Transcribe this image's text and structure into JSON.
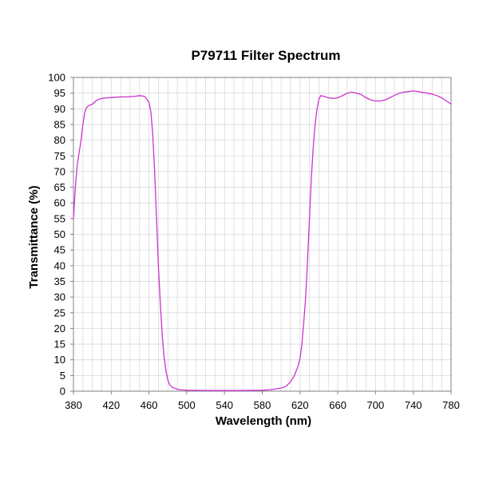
{
  "chart_data": {
    "type": "line",
    "title": "P79711 Filter Spectrum",
    "xlabel": "Wavelength (nm)",
    "ylabel": "Transmittance (%)",
    "xlim": [
      380,
      780
    ],
    "ylim": [
      0,
      100
    ],
    "x_ticks": [
      380,
      420,
      460,
      500,
      540,
      580,
      620,
      660,
      700,
      740,
      780
    ],
    "y_ticks": [
      0,
      5,
      10,
      15,
      20,
      25,
      30,
      35,
      40,
      45,
      50,
      55,
      60,
      65,
      70,
      75,
      80,
      85,
      90,
      95,
      100
    ],
    "grid": true,
    "legend": "none",
    "line_color": "#cc33cc",
    "series": [
      {
        "points": [
          [
            380,
            55
          ],
          [
            382,
            65
          ],
          [
            384,
            72
          ],
          [
            386,
            76
          ],
          [
            388,
            80
          ],
          [
            390,
            85
          ],
          [
            392,
            89
          ],
          [
            394,
            90.5
          ],
          [
            396,
            91
          ],
          [
            400,
            91.5
          ],
          [
            405,
            92.8
          ],
          [
            410,
            93.3
          ],
          [
            415,
            93.5
          ],
          [
            420,
            93.6
          ],
          [
            425,
            93.7
          ],
          [
            430,
            93.8
          ],
          [
            435,
            93.8
          ],
          [
            440,
            93.9
          ],
          [
            445,
            94
          ],
          [
            450,
            94.2
          ],
          [
            455,
            94
          ],
          [
            458,
            93
          ],
          [
            460,
            92
          ],
          [
            462,
            89
          ],
          [
            464,
            82
          ],
          [
            466,
            70
          ],
          [
            468,
            55
          ],
          [
            470,
            40
          ],
          [
            472,
            28
          ],
          [
            474,
            18
          ],
          [
            476,
            11
          ],
          [
            478,
            6.5
          ],
          [
            480,
            3.5
          ],
          [
            482,
            2
          ],
          [
            485,
            1.2
          ],
          [
            490,
            0.6
          ],
          [
            495,
            0.4
          ],
          [
            500,
            0.3
          ],
          [
            520,
            0.2
          ],
          [
            540,
            0.2
          ],
          [
            560,
            0.2
          ],
          [
            580,
            0.3
          ],
          [
            590,
            0.5
          ],
          [
            600,
            1
          ],
          [
            605,
            1.5
          ],
          [
            610,
            3
          ],
          [
            614,
            5
          ],
          [
            618,
            8
          ],
          [
            620,
            10.5
          ],
          [
            622,
            15
          ],
          [
            624,
            22
          ],
          [
            626,
            30
          ],
          [
            628,
            42
          ],
          [
            630,
            55
          ],
          [
            632,
            68
          ],
          [
            634,
            78
          ],
          [
            636,
            85
          ],
          [
            638,
            90
          ],
          [
            640,
            93
          ],
          [
            642,
            94.2
          ],
          [
            645,
            94
          ],
          [
            650,
            93.5
          ],
          [
            655,
            93.3
          ],
          [
            660,
            93.5
          ],
          [
            665,
            94.2
          ],
          [
            670,
            95
          ],
          [
            675,
            95.3
          ],
          [
            680,
            95
          ],
          [
            685,
            94.5
          ],
          [
            690,
            93.5
          ],
          [
            695,
            92.8
          ],
          [
            700,
            92.5
          ],
          [
            705,
            92.5
          ],
          [
            710,
            92.8
          ],
          [
            715,
            93.5
          ],
          [
            720,
            94.3
          ],
          [
            725,
            95
          ],
          [
            730,
            95.3
          ],
          [
            735,
            95.5
          ],
          [
            740,
            95.7
          ],
          [
            745,
            95.5
          ],
          [
            750,
            95.2
          ],
          [
            755,
            95
          ],
          [
            760,
            94.7
          ],
          [
            765,
            94.2
          ],
          [
            770,
            93.5
          ],
          [
            775,
            92.5
          ],
          [
            780,
            91.5
          ]
        ]
      }
    ]
  }
}
